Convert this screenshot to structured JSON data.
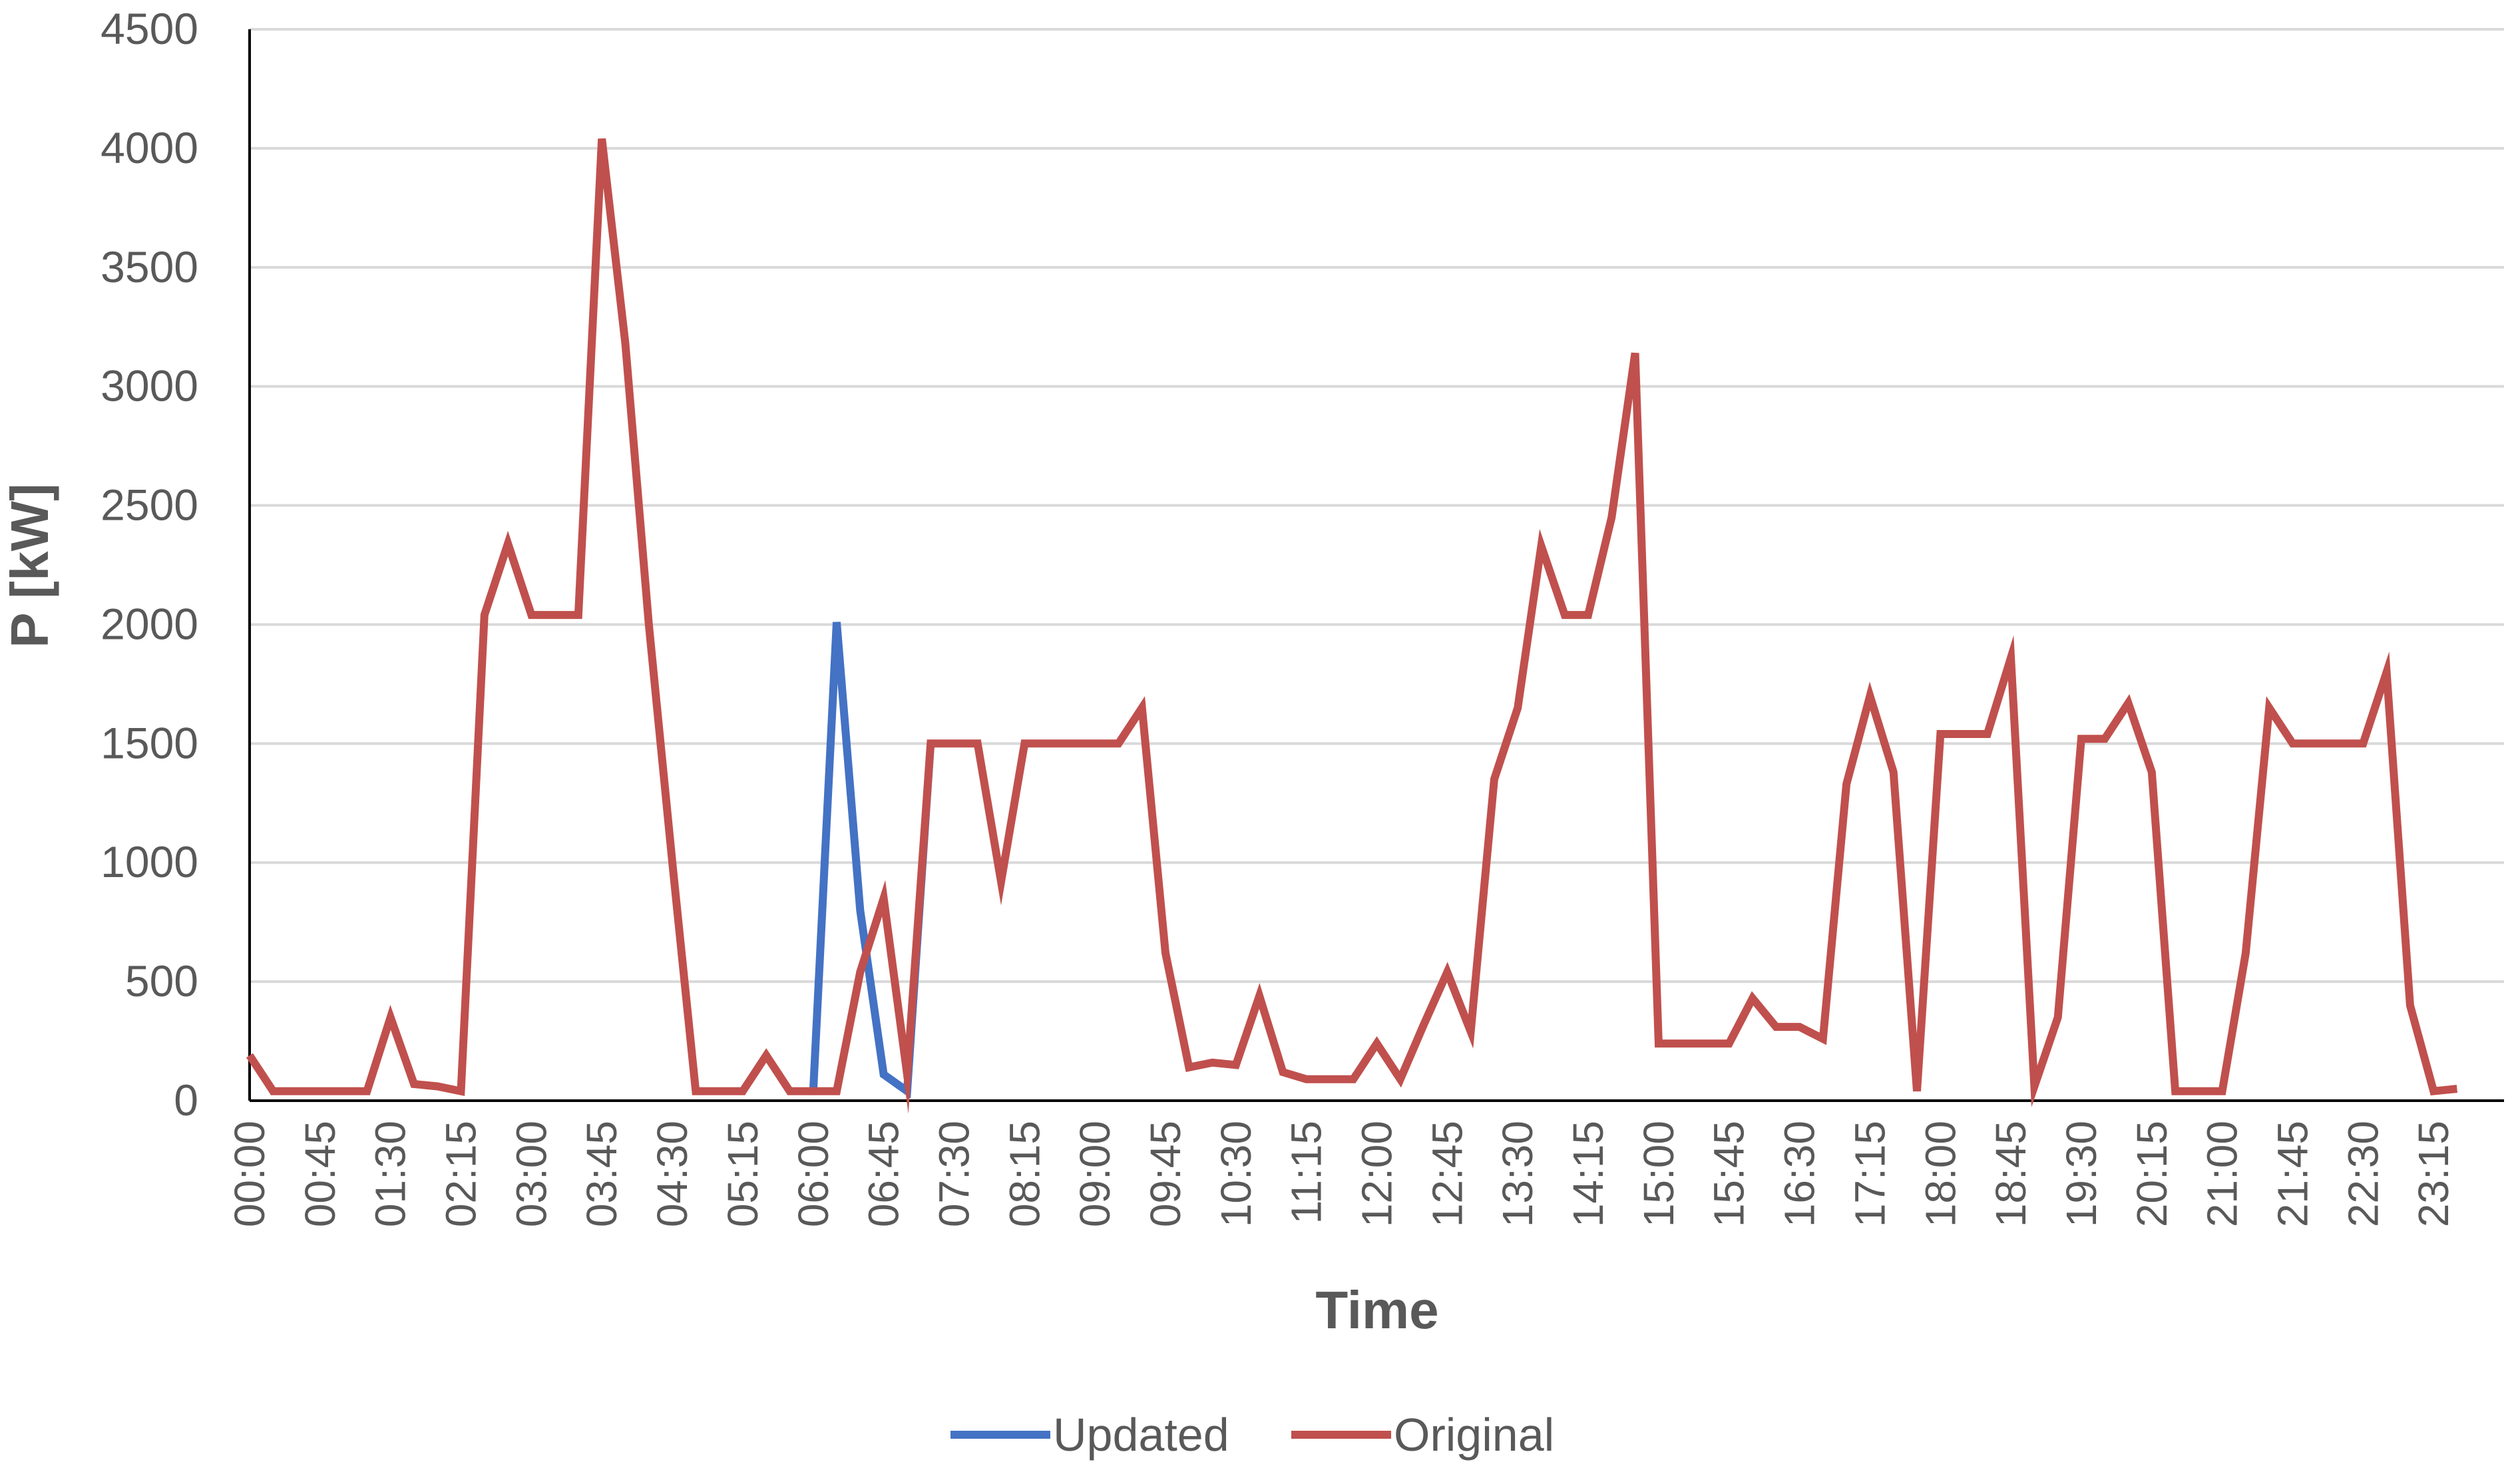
{
  "chart_data": {
    "type": "line",
    "xlabel": "Time",
    "ylabel": "P [kW]",
    "ylim": [
      0,
      4500
    ],
    "y_ticks": [
      0,
      500,
      1000,
      1500,
      2000,
      2500,
      3000,
      3500,
      4000,
      4500
    ],
    "x_tick_labels": [
      "00:00",
      "00:45",
      "01:30",
      "02:15",
      "03:00",
      "03:45",
      "04:30",
      "05:15",
      "06:00",
      "06:45",
      "07:30",
      "08:15",
      "09:00",
      "09:45",
      "10:30",
      "11:15",
      "12:00",
      "12:45",
      "13:30",
      "14:15",
      "15:00",
      "15:45",
      "16:30",
      "17:15",
      "18:00",
      "18:45",
      "19:30",
      "20:15",
      "21:00",
      "21:45",
      "22:30",
      "23:15"
    ],
    "x_interval_minutes": 15,
    "grid": "horizontal",
    "legend_position": "bottom",
    "series": [
      {
        "name": "Updated",
        "color": "#4472C4",
        "start_time": "06:00",
        "values": [
          40,
          2010,
          800,
          110,
          40,
          1500
        ]
      },
      {
        "name": "Original",
        "color": "#C0504D",
        "start_time": "00:00",
        "values": [
          190,
          40,
          40,
          40,
          40,
          40,
          350,
          70,
          60,
          40,
          2040,
          2340,
          2040,
          2040,
          2040,
          4040,
          3180,
          2000,
          1000,
          40,
          40,
          40,
          190,
          40,
          40,
          40,
          540,
          850,
          110,
          1500,
          1500,
          1500,
          920,
          1500,
          1500,
          1500,
          1500,
          1500,
          1650,
          620,
          140,
          160,
          150,
          440,
          120,
          90,
          90,
          90,
          240,
          90,
          320,
          540,
          290,
          1350,
          1650,
          2330,
          2040,
          2040,
          2450,
          3140,
          240,
          240,
          240,
          240,
          430,
          310,
          310,
          260,
          1330,
          1700,
          1380,
          40,
          1540,
          1540,
          1540,
          1860,
          60,
          350,
          1520,
          1520,
          1670,
          1380,
          40,
          40,
          40,
          620,
          1650,
          1500,
          1500,
          1500,
          1500,
          1800,
          400,
          40,
          50
        ]
      }
    ]
  }
}
